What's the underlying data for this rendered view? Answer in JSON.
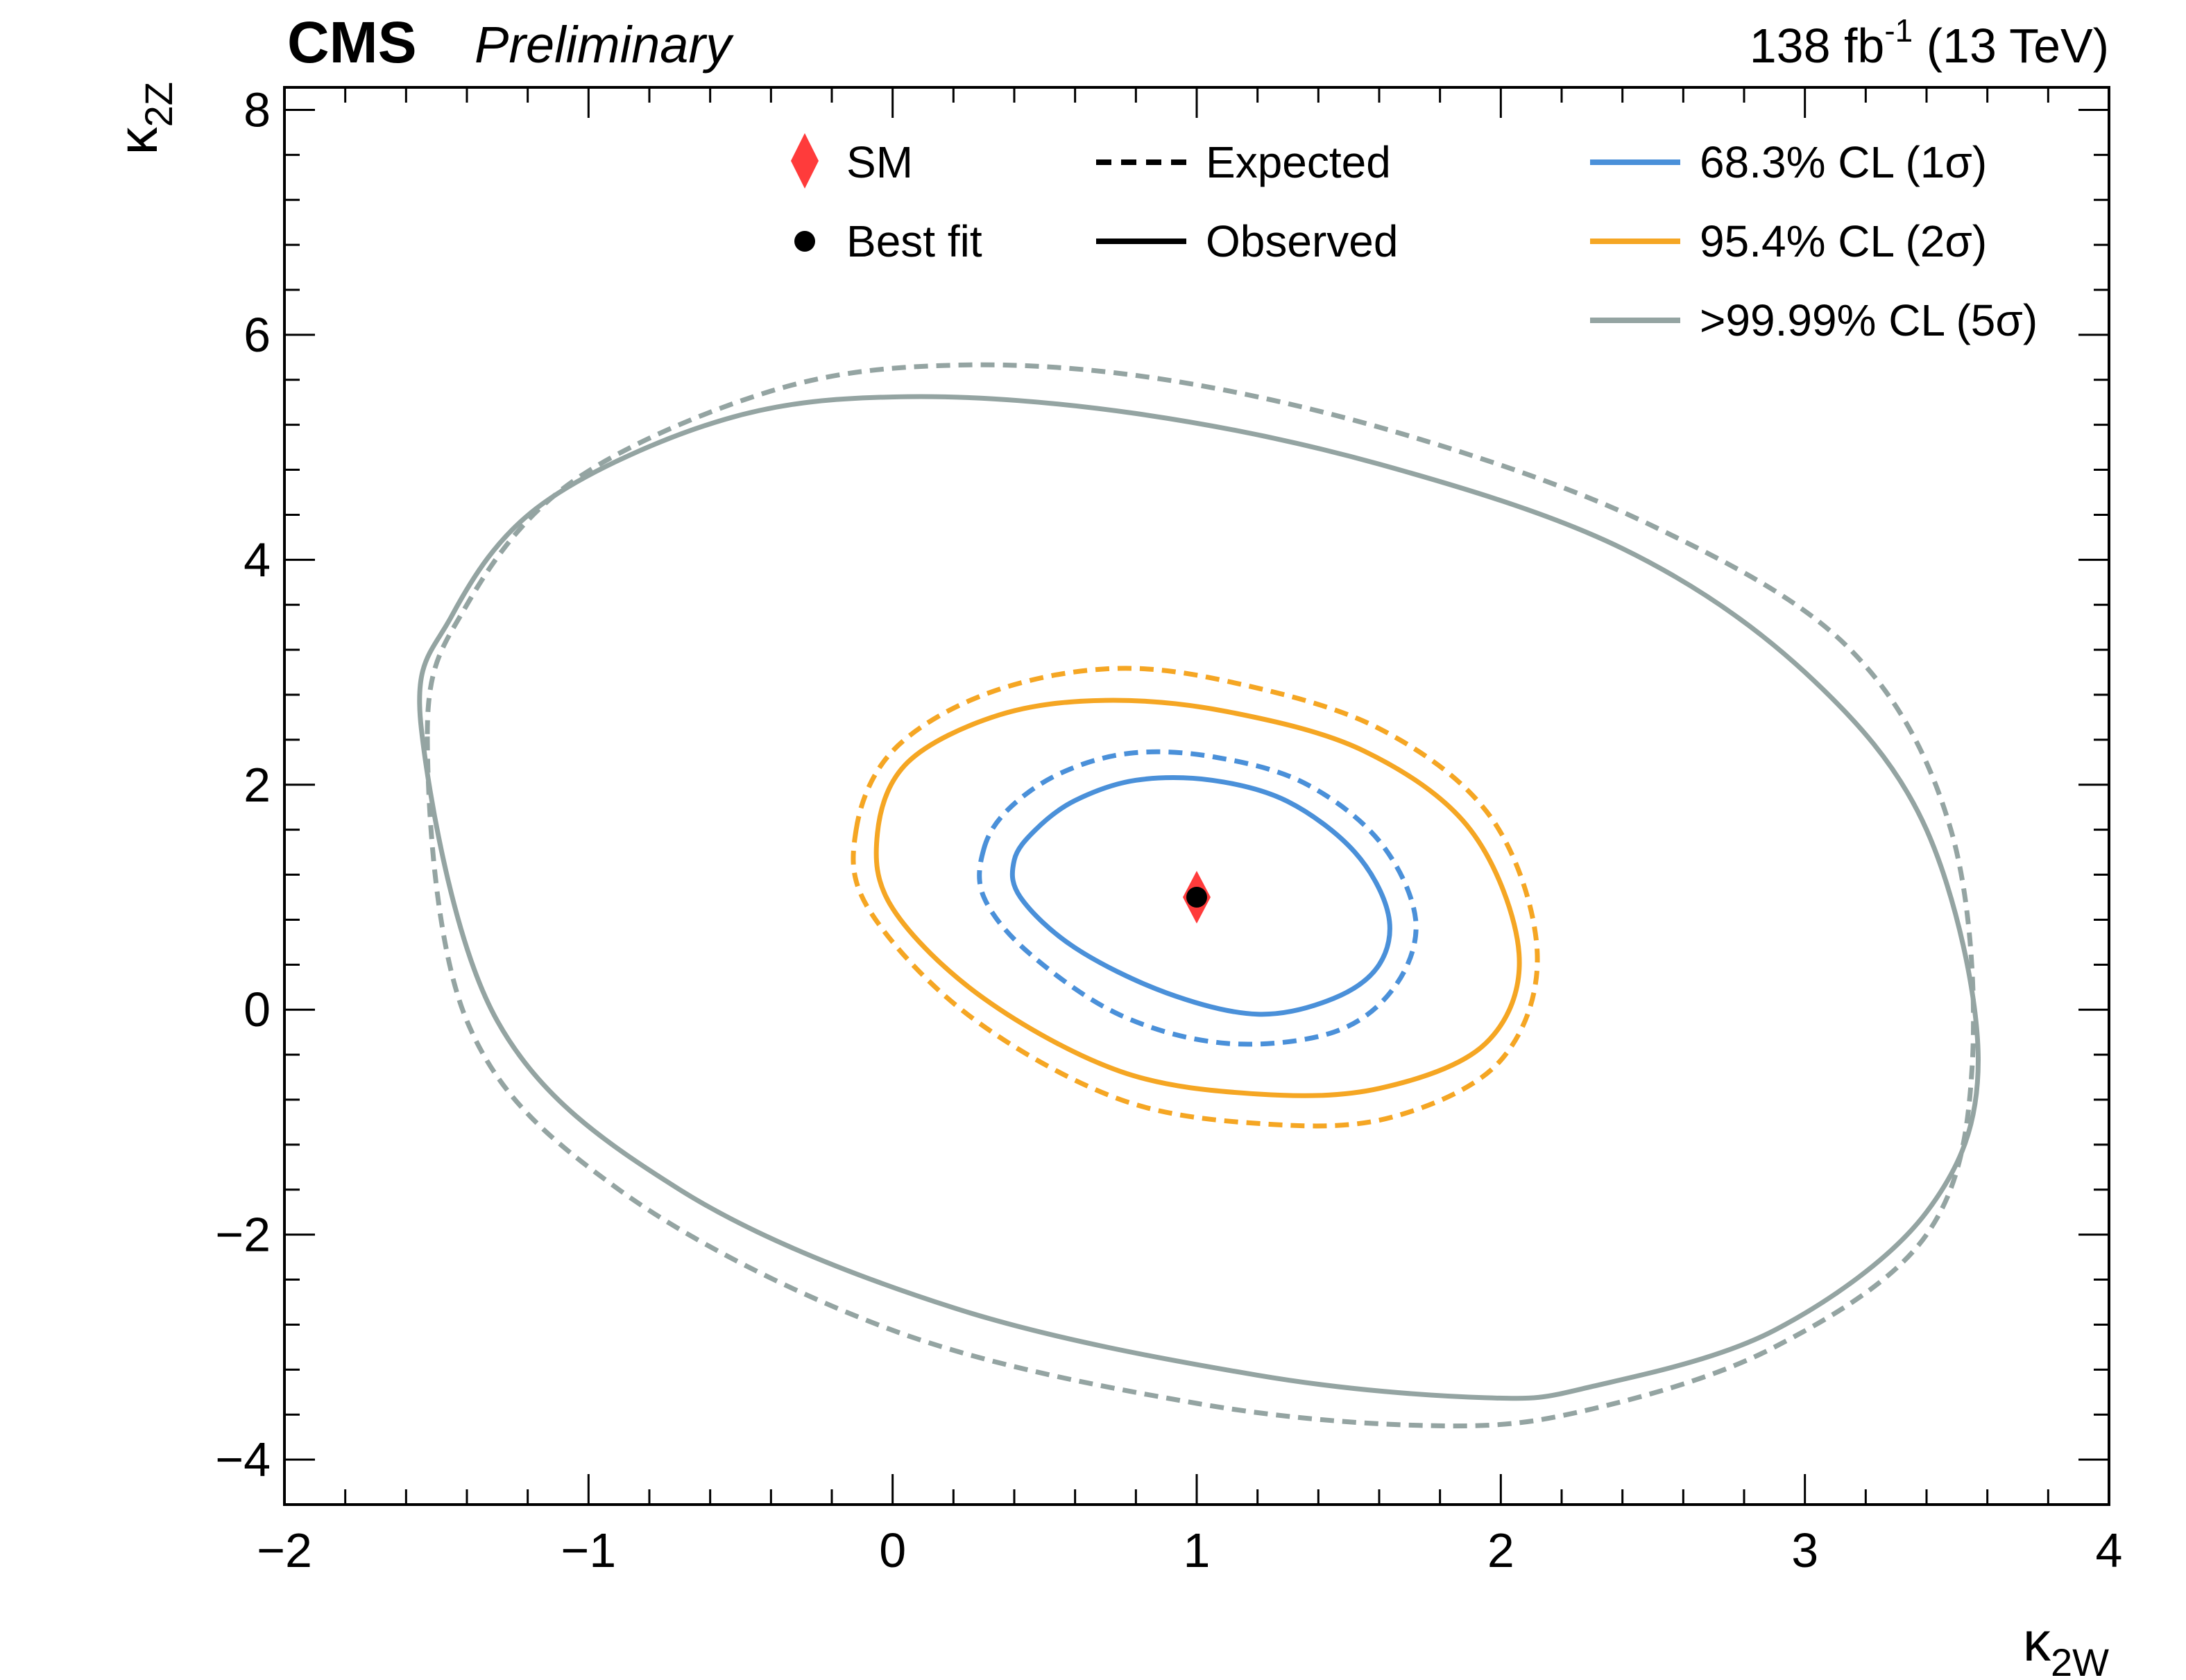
{
  "header": {
    "experiment": "CMS",
    "status": "Preliminary",
    "lumi_value": "138 fb",
    "lumi_exp": "-1",
    "energy": " (13 TeV)"
  },
  "chart_data": {
    "type": "contour",
    "xlabel": {
      "main": "κ",
      "sub": "2W"
    },
    "ylabel": {
      "main": "κ",
      "sub": "2Z"
    },
    "xlim": [
      -2,
      4
    ],
    "ylim": [
      -4.4,
      8.2
    ],
    "x_ticks": [
      -2,
      -1,
      0,
      1,
      2,
      3,
      4
    ],
    "x_tick_labels": [
      "−2",
      "−1",
      "0",
      "1",
      "2",
      "3",
      "4"
    ],
    "y_ticks": [
      -4,
      -2,
      0,
      2,
      4,
      6,
      8
    ],
    "y_tick_labels": [
      "−4",
      "−2",
      "0",
      "2",
      "4",
      "6",
      "8"
    ],
    "grid": false,
    "colors": {
      "cl68": "#4a90d9",
      "cl95": "#f5a623",
      "cl5sigma": "#94a4a2",
      "sm": "#ff3b3b",
      "best_fit": "#000000"
    },
    "sm_point": {
      "x": 1.0,
      "y": 1.0
    },
    "best_fit": {
      "x": 1.0,
      "y": 1.0
    },
    "legend": {
      "placement": "top-right",
      "items": [
        {
          "label": "SM",
          "marker": "diamond"
        },
        {
          "label": "Best fit",
          "marker": "dot"
        },
        {
          "label": "Expected",
          "line": "dashed"
        },
        {
          "label": "Observed",
          "line": "solid"
        },
        {
          "label": "68.3% CL (1σ)",
          "color": "#4a90d9"
        },
        {
          "label": "95.4% CL (2σ)",
          "color": "#f5a623"
        },
        {
          "label": ">99.99% CL (5σ)",
          "color": "#94a4a2"
        }
      ]
    },
    "contours": [
      {
        "level": "68.3% CL (1σ)",
        "kind": "observed",
        "color": "#4a90d9",
        "points": [
          [
            0.4,
            1.33
          ],
          [
            0.47,
            1.6
          ],
          [
            0.6,
            1.86
          ],
          [
            0.8,
            2.04
          ],
          [
            1.05,
            2.04
          ],
          [
            1.3,
            1.85
          ],
          [
            1.52,
            1.4
          ],
          [
            1.63,
            0.85
          ],
          [
            1.6,
            0.4
          ],
          [
            1.45,
            0.1
          ],
          [
            1.2,
            -0.04
          ],
          [
            0.9,
            0.15
          ],
          [
            0.6,
            0.55
          ],
          [
            0.42,
            1.0
          ]
        ]
      },
      {
        "level": "68.3% CL (1σ)",
        "kind": "expected",
        "color": "#4a90d9",
        "points": [
          [
            0.3,
            1.43
          ],
          [
            0.38,
            1.78
          ],
          [
            0.55,
            2.1
          ],
          [
            0.78,
            2.28
          ],
          [
            1.05,
            2.25
          ],
          [
            1.35,
            2.02
          ],
          [
            1.6,
            1.5
          ],
          [
            1.72,
            0.8
          ],
          [
            1.65,
            0.2
          ],
          [
            1.45,
            -0.2
          ],
          [
            1.1,
            -0.3
          ],
          [
            0.75,
            -0.05
          ],
          [
            0.45,
            0.5
          ],
          [
            0.3,
            1.0
          ]
        ]
      },
      {
        "level": "95.4% CL (2σ)",
        "kind": "observed",
        "color": "#f5a623",
        "points": [
          [
            -0.05,
            1.57
          ],
          [
            0.05,
            2.2
          ],
          [
            0.35,
            2.62
          ],
          [
            0.7,
            2.75
          ],
          [
            1.1,
            2.65
          ],
          [
            1.55,
            2.3
          ],
          [
            1.9,
            1.6
          ],
          [
            2.06,
            0.5
          ],
          [
            1.95,
            -0.3
          ],
          [
            1.6,
            -0.7
          ],
          [
            1.2,
            -0.75
          ],
          [
            0.75,
            -0.55
          ],
          [
            0.3,
            0.1
          ],
          [
            0.0,
            0.9
          ]
        ]
      },
      {
        "level": "95.4% CL (2σ)",
        "kind": "expected",
        "color": "#f5a623",
        "points": [
          [
            -0.12,
            1.6
          ],
          [
            0.0,
            2.3
          ],
          [
            0.3,
            2.8
          ],
          [
            0.7,
            3.03
          ],
          [
            1.1,
            2.92
          ],
          [
            1.6,
            2.5
          ],
          [
            1.97,
            1.7
          ],
          [
            2.12,
            0.5
          ],
          [
            2.0,
            -0.45
          ],
          [
            1.65,
            -0.95
          ],
          [
            1.25,
            -1.02
          ],
          [
            0.75,
            -0.8
          ],
          [
            0.25,
            -0.05
          ],
          [
            -0.08,
            0.9
          ]
        ]
      },
      {
        "level": ">99.99% CL (5σ)",
        "kind": "observed",
        "color": "#94a4a2",
        "points": [
          [
            -1.55,
            2.5
          ],
          [
            -1.45,
            3.5
          ],
          [
            -1.15,
            4.5
          ],
          [
            -0.55,
            5.25
          ],
          [
            0.05,
            5.45
          ],
          [
            0.8,
            5.3
          ],
          [
            1.6,
            4.85
          ],
          [
            2.4,
            4.1
          ],
          [
            3.0,
            3.0
          ],
          [
            3.4,
            1.6
          ],
          [
            3.57,
            -0.45
          ],
          [
            3.4,
            -1.8
          ],
          [
            2.9,
            -2.85
          ],
          [
            2.3,
            -3.35
          ],
          [
            1.95,
            -3.45
          ],
          [
            1.2,
            -3.25
          ],
          [
            0.2,
            -2.65
          ],
          [
            -0.7,
            -1.6
          ],
          [
            -1.3,
            -0.1
          ]
        ]
      },
      {
        "level": ">99.99% CL (5σ)",
        "kind": "expected",
        "color": "#94a4a2",
        "points": [
          [
            -1.53,
            2.45
          ],
          [
            -1.4,
            3.6
          ],
          [
            -1.05,
            4.7
          ],
          [
            -0.4,
            5.5
          ],
          [
            0.2,
            5.73
          ],
          [
            0.9,
            5.6
          ],
          [
            1.7,
            5.1
          ],
          [
            2.5,
            4.3
          ],
          [
            3.15,
            3.2
          ],
          [
            3.48,
            1.6
          ],
          [
            3.55,
            -0.5
          ],
          [
            3.4,
            -2.0
          ],
          [
            2.9,
            -3.0
          ],
          [
            2.3,
            -3.55
          ],
          [
            1.8,
            -3.7
          ],
          [
            1.0,
            -3.5
          ],
          [
            0.0,
            -2.85
          ],
          [
            -0.9,
            -1.6
          ],
          [
            -1.4,
            -0.1
          ]
        ]
      }
    ]
  }
}
